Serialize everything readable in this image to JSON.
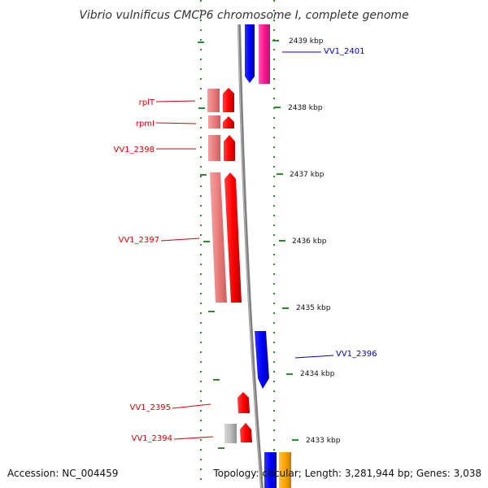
{
  "title": "Vibrio vulnificus CMCP6 chromosome I, complete genome",
  "footer": {
    "accession": "Accession: NC_004459",
    "topology": "Topology: circular; Length: 3,281,944 bp; Genes: 3,038"
  },
  "colors": {
    "forward_strand": "#ff0000",
    "forward_pale": "#f08080",
    "reverse_strand": "#0000ff",
    "pink_gene": "#ff1493",
    "grey_gene": "#b0b0b0",
    "orange_gene": "#ffa500",
    "tick_marks": "#2e8b2e",
    "backbone": "#808080",
    "label_red": "#dd0000",
    "label_blue": "#0000cc"
  },
  "kbp_marks": [
    "2439 kbp",
    "2438 kbp",
    "2437 kbp",
    "2436 kbp",
    "2435 kbp",
    "2434 kbp",
    "2433 kbp"
  ],
  "gene_labels": [
    {
      "name": "VV1_2401",
      "strand": "reverse"
    },
    {
      "name": "rplT",
      "strand": "forward"
    },
    {
      "name": "rpmI",
      "strand": "forward"
    },
    {
      "name": "VV1_2398",
      "strand": "forward"
    },
    {
      "name": "VV1_2397",
      "strand": "forward"
    },
    {
      "name": "VV1_2396",
      "strand": "reverse"
    },
    {
      "name": "VV1_2395",
      "strand": "forward"
    },
    {
      "name": "VV1_2394",
      "strand": "forward"
    }
  ]
}
